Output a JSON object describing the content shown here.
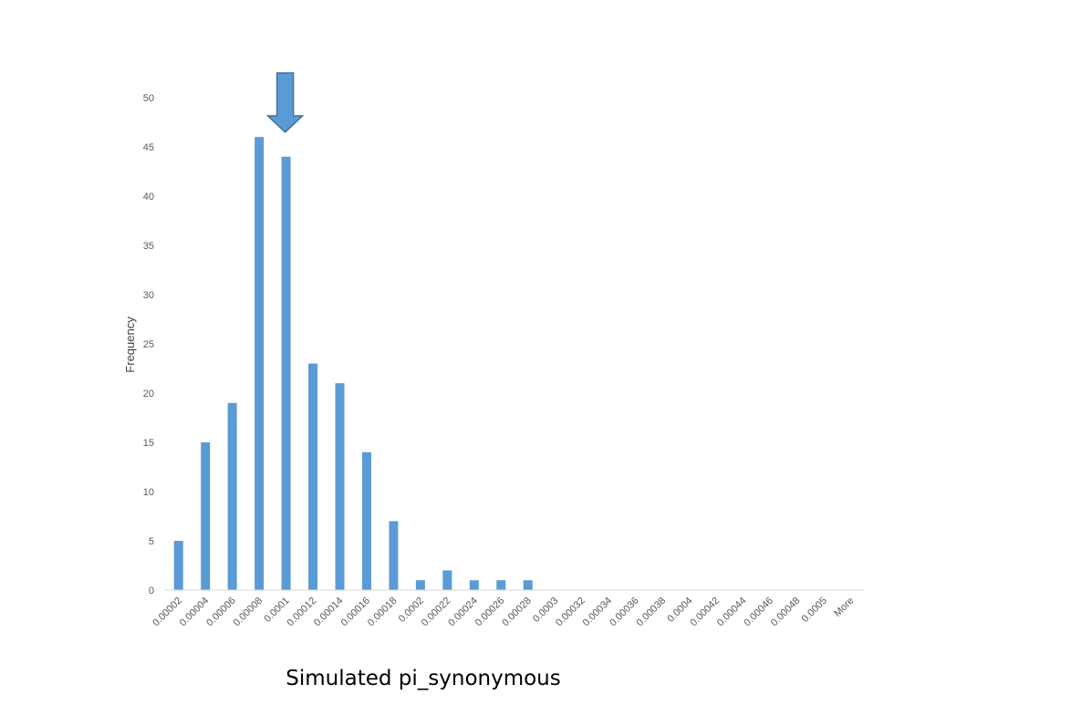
{
  "chart_data": {
    "type": "bar",
    "title": "",
    "xlabel": "Simulated pi_synonymous",
    "ylabel": "Frequency",
    "ylim": [
      0,
      50
    ],
    "yticks": [
      0,
      5,
      10,
      15,
      20,
      25,
      30,
      35,
      40,
      45,
      50
    ],
    "grid": false,
    "legend": "none",
    "categories": [
      "0.00002",
      "0.00004",
      "0.00006",
      "0.00008",
      "0.0001",
      "0.00012",
      "0.00014",
      "0.00016",
      "0.00018",
      "0.0002",
      "0.00022",
      "0.00024",
      "0.00026",
      "0.00028",
      "0.0003",
      "0.00032",
      "0.00034",
      "0.00036",
      "0.00038",
      "0.0004",
      "0.00042",
      "0.00044",
      "0.00046",
      "0.00048",
      "0.0005",
      "More"
    ],
    "series": [
      {
        "values": [
          5,
          15,
          19,
          46,
          44,
          23,
          21,
          14,
          7,
          1,
          2,
          1,
          1,
          1,
          0,
          0,
          0,
          0,
          0,
          0,
          0,
          0,
          0,
          0,
          0,
          0
        ]
      }
    ],
    "annotations": [
      {
        "type": "down-arrow",
        "category": "0.0001"
      }
    ],
    "colors": {
      "bar": "#5B9BD5",
      "arrow_fill": "#5B9BD5",
      "arrow_stroke": "#41719C",
      "axis": "#D9D9D9"
    }
  }
}
